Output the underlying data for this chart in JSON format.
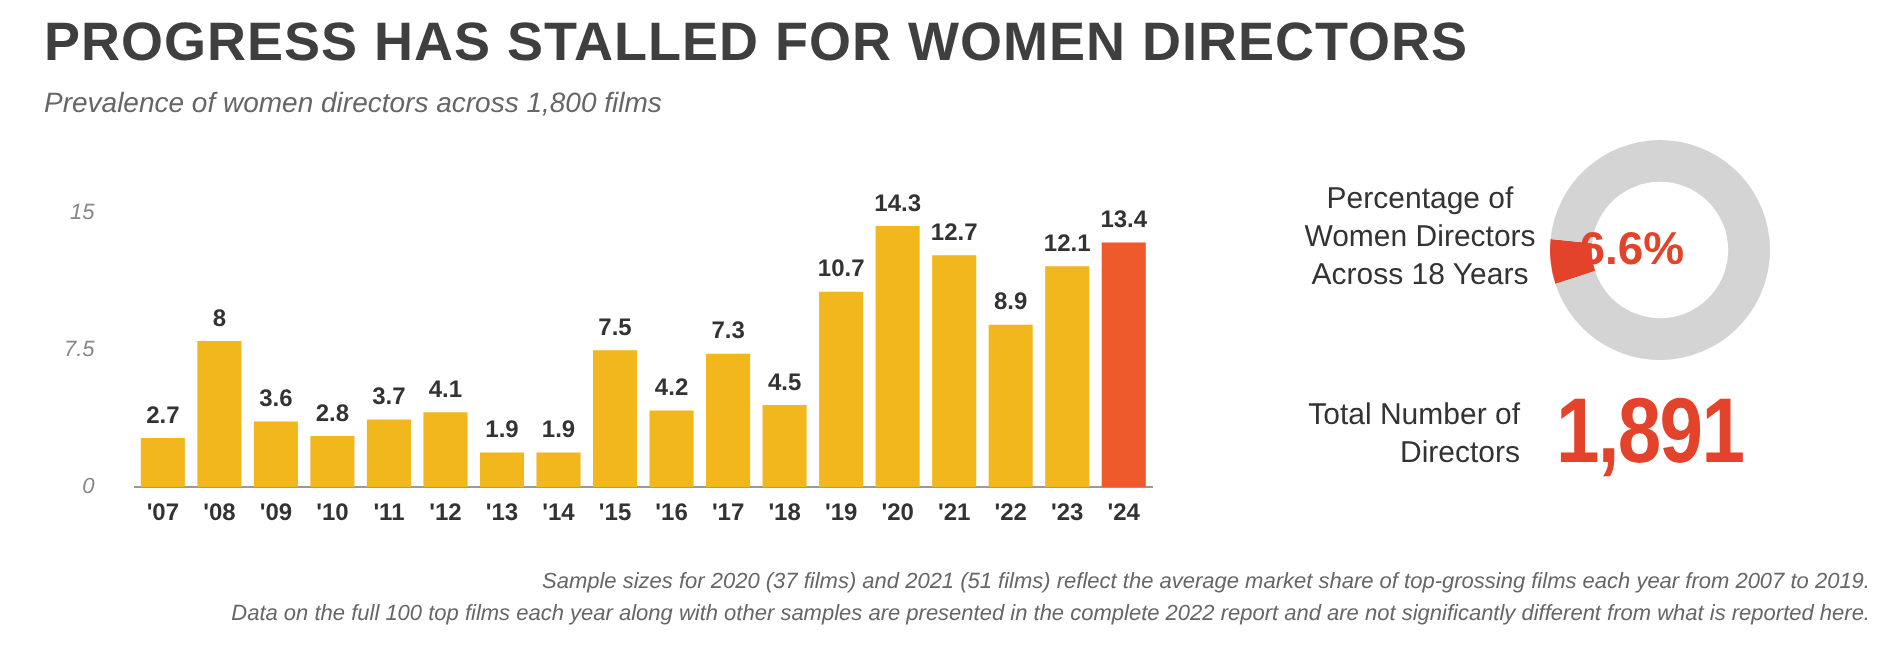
{
  "chart_data": [
    {
      "type": "bar",
      "title": "PROGRESS HAS STALLED FOR WOMEN DIRECTORS",
      "subtitle": "Prevalence of women directors across 1,800 films",
      "categories": [
        "'07",
        "'08",
        "'09",
        "'10",
        "'11",
        "'12",
        "'13",
        "'14",
        "'15",
        "'16",
        "'17",
        "'18",
        "'19",
        "'20",
        "'21",
        "'22",
        "'23",
        "'24"
      ],
      "values": [
        2.7,
        8,
        3.6,
        2.8,
        3.7,
        4.1,
        1.9,
        1.9,
        7.5,
        4.2,
        7.3,
        4.5,
        10.7,
        14.3,
        12.7,
        8.9,
        12.1,
        13.4
      ],
      "colors": [
        "#f3b71e",
        "#f3b71e",
        "#f3b71e",
        "#f3b71e",
        "#f3b71e",
        "#f3b71e",
        "#f3b71e",
        "#f3b71e",
        "#f3b71e",
        "#f3b71e",
        "#f3b71e",
        "#f3b71e",
        "#f3b71e",
        "#f3b71e",
        "#f3b71e",
        "#f3b71e",
        "#f3b71e",
        "#ee5a2b"
      ],
      "ylim": [
        0,
        15
      ],
      "yticks": [
        0,
        7.5,
        15
      ],
      "grid": false,
      "data_labels": true,
      "annotations": [
        "Sample sizes for 2020 (37 films) and 2021 (51 films) reflect the average market share of  top-grossing films each year from 2007 to 2019.",
        "Data on the full 100 top films each year along with other samples are presented in the complete 2022 report and are not significantly different from what is reported here."
      ]
    },
    {
      "type": "donut",
      "title": "Percentage of Women Directors Across 18 Years",
      "categories": [
        null,
        null
      ],
      "values": [
        6.6,
        93.4
      ],
      "colors": [
        "#e4432b",
        "#d4d4d4"
      ],
      "value_labels": [
        "6.6%",
        null
      ]
    },
    {
      "type": "other",
      "title": "Total Number of Directors",
      "annotations": [
        "1,891"
      ]
    }
  ]
}
